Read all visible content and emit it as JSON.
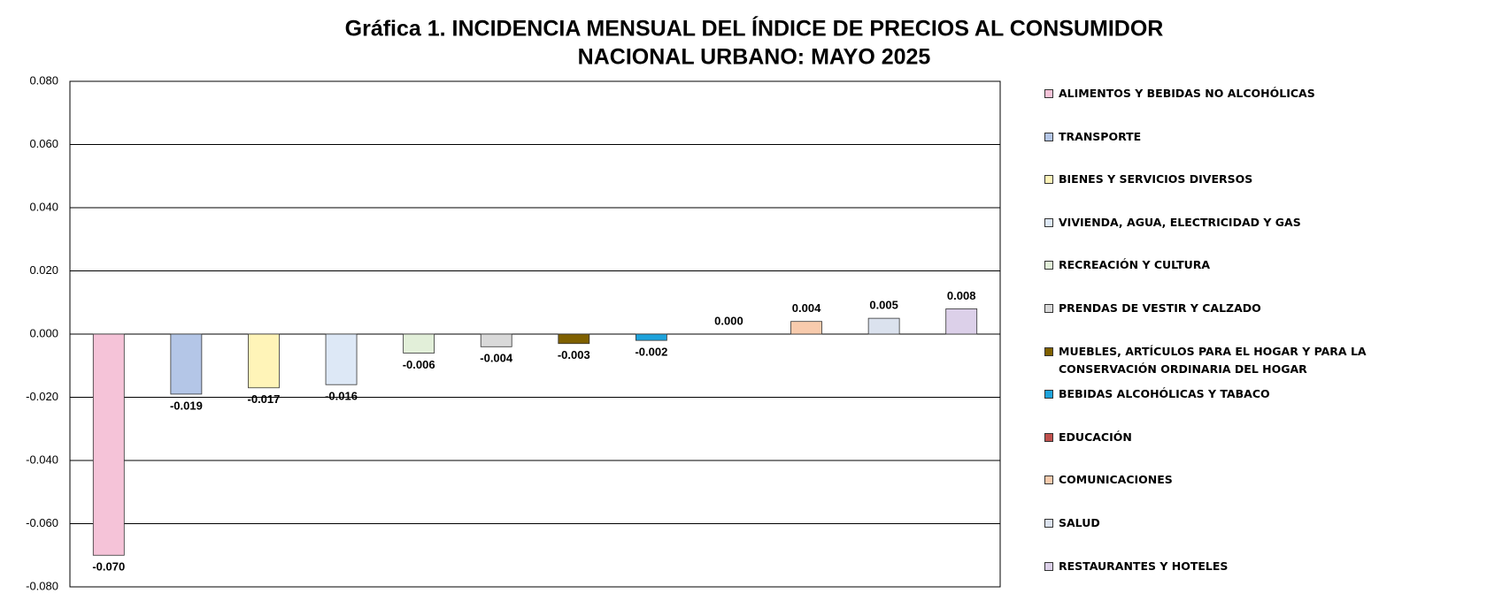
{
  "chart_data": {
    "type": "bar",
    "title": [
      "Gráfica 1.  INCIDENCIA MENSUAL  DEL ÍNDICE DE PRECIOS AL CONSUMIDOR",
      "NACIONAL URBANO: MAYO 2025"
    ],
    "categories": [
      "ALIMENTOS Y BEBIDAS NO ALCOHÓLICAS",
      "TRANSPORTE",
      "BIENES Y SERVICIOS DIVERSOS",
      "VIVIENDA, AGUA, ELECTRICIDAD Y GAS",
      "RECREACIÓN Y CULTURA",
      "PRENDAS DE VESTIR Y CALZADO",
      "MUEBLES, ARTÍCULOS PARA EL HOGAR Y PARA LA CONSERVACIÓN ORDINARIA DEL HOGAR",
      "BEBIDAS ALCOHÓLICAS Y TABACO",
      "EDUCACIÓN",
      "COMUNICACIONES",
      "SALUD",
      "RESTAURANTES Y HOTELES"
    ],
    "values": [
      -0.07,
      -0.019,
      -0.017,
      -0.016,
      -0.006,
      -0.004,
      -0.003,
      -0.002,
      0,
      0.004,
      0.005,
      0.008
    ],
    "value_labels": [
      "-0.070",
      "-0.019",
      "-0.017",
      "-0.016",
      "-0.006",
      "-0.004",
      "-0.003",
      "-0.002",
      "0.000",
      "0.004",
      "0.005",
      "0.008"
    ],
    "colors": [
      "#f5c3d8",
      "#b4c6e7",
      "#fff4b8",
      "#dde8f6",
      "#e2efd9",
      "#d9d9d9",
      "#7f6000",
      "#1ea3dc",
      "#c0504d",
      "#f8cbad",
      "#dbe2ee",
      "#dcd0e9"
    ],
    "ylim": [
      -0.08,
      0.08
    ],
    "yticks": [
      {
        "value": -0.08,
        "label": "-0.080"
      },
      {
        "value": -0.06,
        "label": "-0.060"
      },
      {
        "value": -0.04,
        "label": "-0.040"
      },
      {
        "value": -0.02,
        "label": "-0.020"
      },
      {
        "value": 0,
        "label": "0.000"
      },
      {
        "value": 0.02,
        "label": "0.020"
      },
      {
        "value": 0.04,
        "label": "0.040"
      },
      {
        "value": 0.06,
        "label": "0.060"
      },
      {
        "value": 0.08,
        "label": "0.080"
      }
    ],
    "grid": true,
    "legend": "right"
  }
}
